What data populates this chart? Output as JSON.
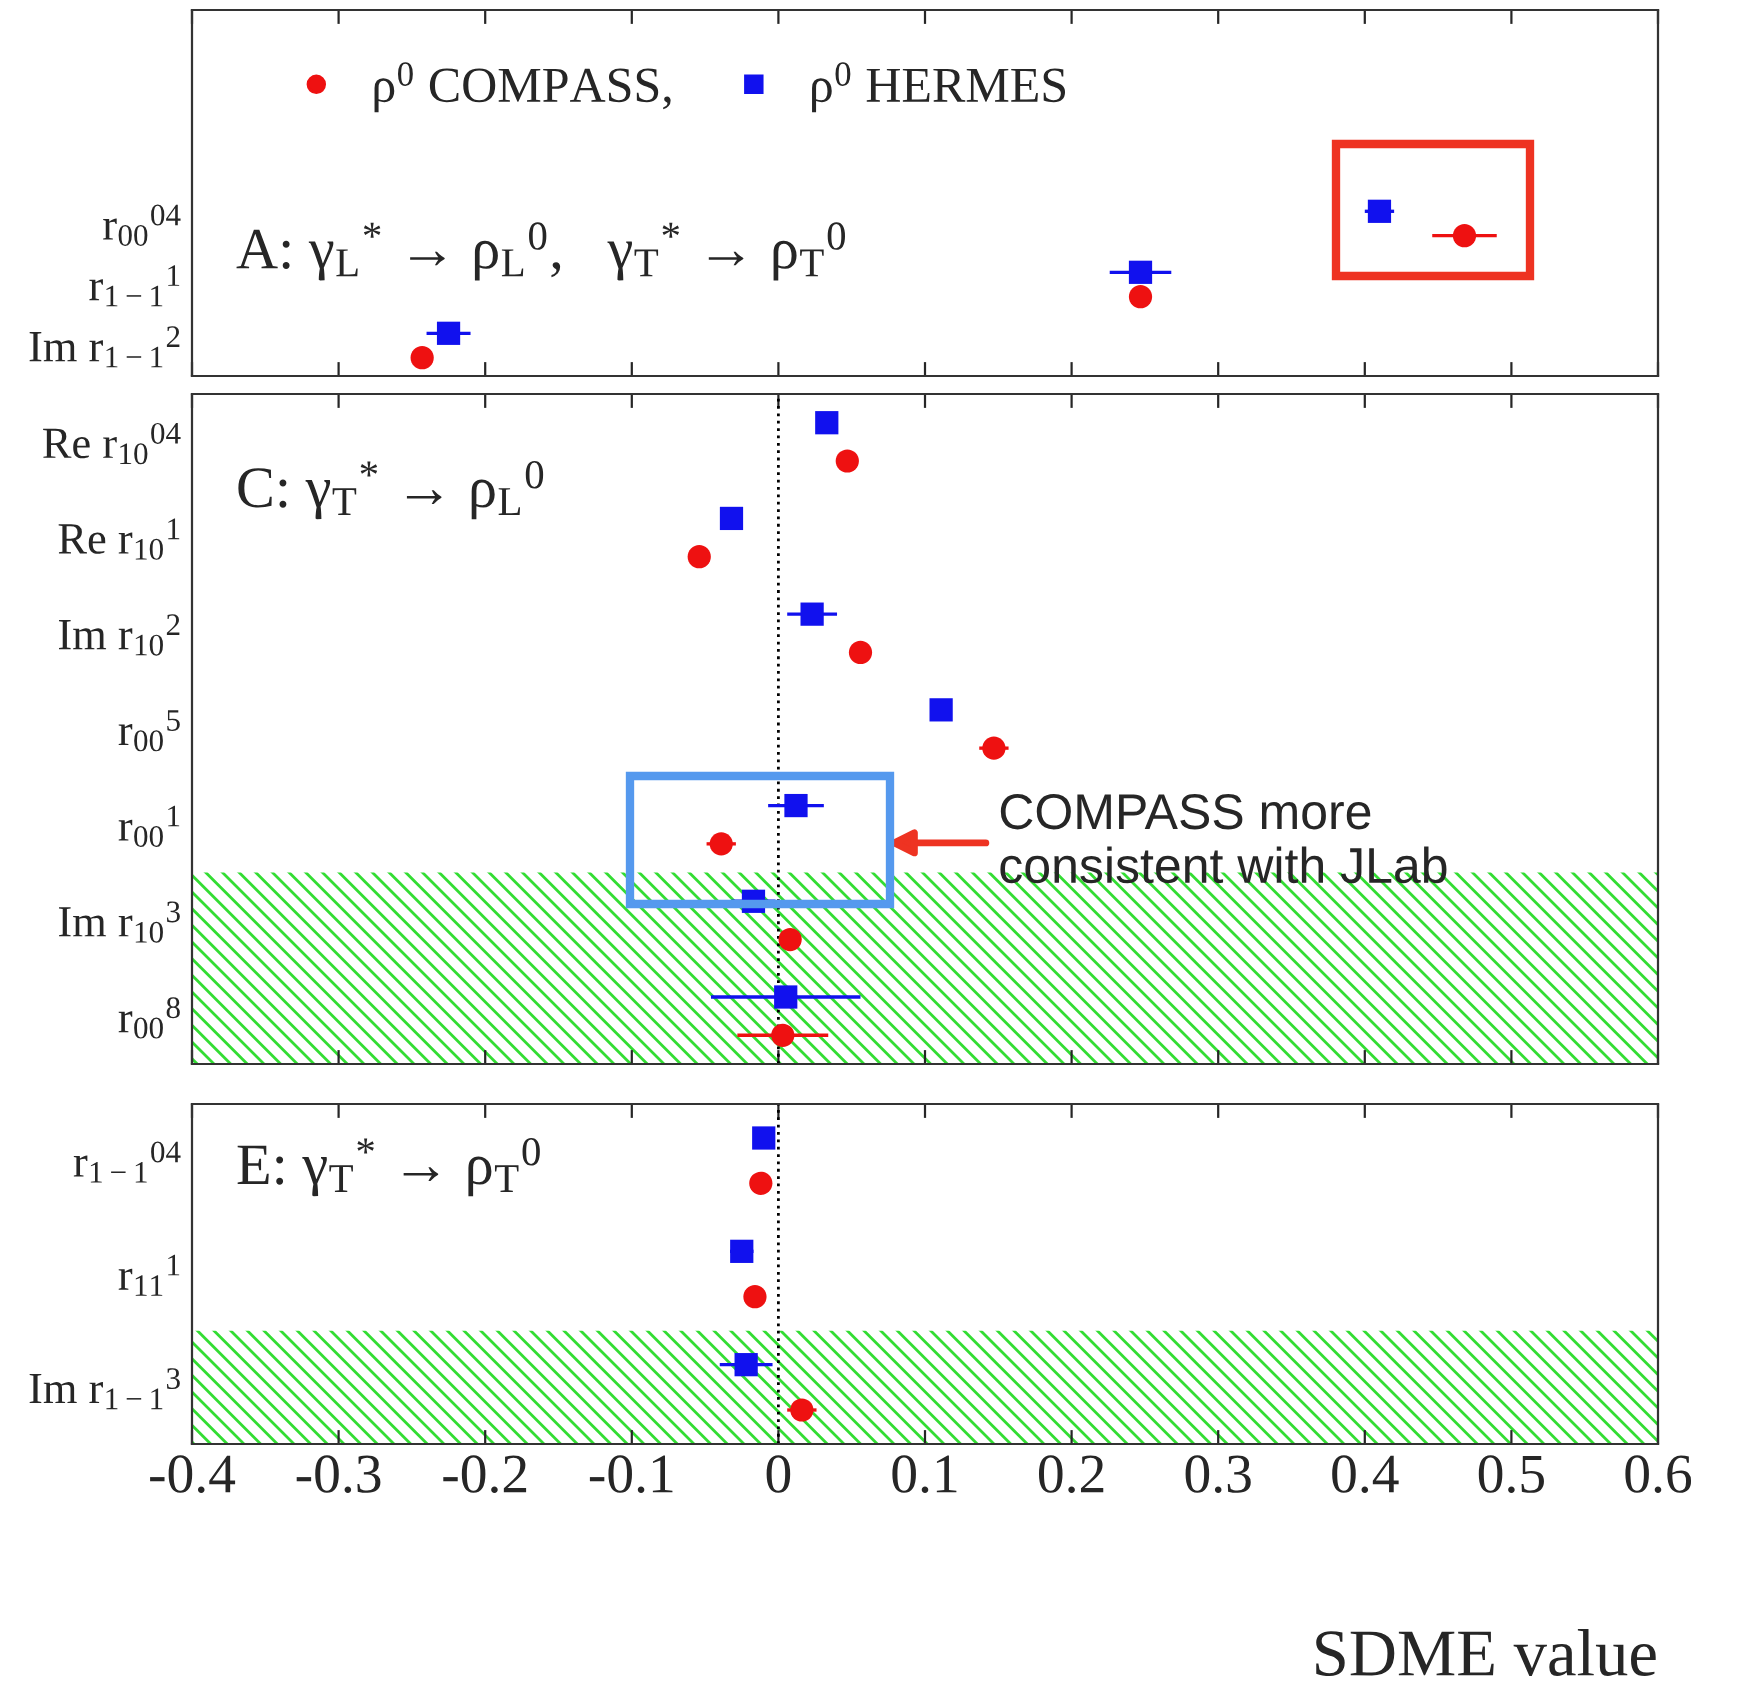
{
  "chart_data": [
    {
      "type": "scatter",
      "title": "A: γ$_{L}$$^{*}$ → ρ$_{L}$$^{0}$,   γ$_{T}$$^{*}$ → ρ$_{T}$$^{0}$",
      "categories": [
        null,
        null,
        null,
        "r$_{00}$$^{04}$",
        "r$_{1−1}$$^{1}$",
        "Im r$_{1−1}$$^{2}$"
      ],
      "series": [
        {
          "name": "ρ$^{0}$ COMPASS,",
          "color": "#ee1111",
          "marker": "circle",
          "values": [
            null,
            null,
            null,
            0.468,
            0.247,
            -0.243
          ],
          "errors": [
            null,
            null,
            null,
            0.022,
            null,
            null
          ]
        },
        {
          "name": "ρ$^{0}$ HERMES",
          "color": "#1111ee",
          "marker": "square",
          "values": [
            null,
            null,
            null,
            0.41,
            0.247,
            -0.225
          ],
          "errors": [
            null,
            null,
            null,
            0.01,
            0.021,
            0.015
          ]
        }
      ],
      "xlim": [
        -0.4,
        0.6
      ],
      "xticks": [
        -0.4,
        -0.3,
        -0.2,
        -0.1,
        0,
        0.1,
        0.2,
        0.3,
        0.4,
        0.5,
        0.6
      ],
      "tick_labels": "y",
      "legend": "top left",
      "orientation": "horizontal"
    },
    {
      "type": "scatter",
      "title": "C: γ$_{T}$$^{*}$ → ρ$_{L}$$^{0}$",
      "categories": [
        "Re r$_{10}$$^{04}$",
        "Re r$_{10}$$^{1}$",
        "Im r$_{10}$$^{2}$",
        "r$_{00}$$^{5}$",
        "r$_{00}$$^{1}$",
        "Im r$_{10}$$^{3}$",
        "r$_{00}$$^{8}$"
      ],
      "series": [
        {
          "color": "#ee1111",
          "marker": "circle",
          "values": [
            0.047,
            -0.054,
            0.056,
            0.147,
            -0.039,
            0.008,
            0.003
          ],
          "errors": [
            null,
            null,
            null,
            0.01,
            0.01,
            null,
            0.031
          ]
        },
        {
          "color": "#1111ee",
          "marker": "square",
          "values": [
            0.033,
            -0.032,
            0.023,
            0.111,
            0.012,
            -0.017,
            0.005
          ],
          "errors": [
            null,
            null,
            0.017,
            null,
            0.019,
            0.015,
            0.051
          ]
        }
      ],
      "xlim": [
        -0.4,
        0.6
      ],
      "xticks": [
        -0.4,
        -0.3,
        -0.2,
        -0.1,
        0,
        0.1,
        0.2,
        0.3,
        0.4,
        0.5,
        0.6
      ],
      "tick_labels": "y",
      "orientation": "horizontal",
      "ref_lines": [
        {
          "axis": "x",
          "value": 0,
          "line_style": "dotted",
          "color": "#000000"
        }
      ],
      "bands": [
        {
          "axis": "y",
          "from": "Im r$_{10}$$^{3}$",
          "to": "r$_{00}$$^{8}$",
          "color": "#33dd33"
        }
      ],
      "annotations": [
        "COMPASS more\nconsistent with JLab"
      ]
    },
    {
      "type": "scatter",
      "title": "E: γ$_{T}$$^{*}$ → ρ$_{T}$$^{0}$",
      "categories": [
        "r$_{1−1}$$^{04}$",
        "r$_{11}$$^{1}$",
        "Im r$_{1−1}$$^{3}$"
      ],
      "series": [
        {
          "color": "#ee1111",
          "marker": "circle",
          "values": [
            -0.012,
            -0.016,
            0.016
          ],
          "errors": [
            null,
            null,
            0.01
          ]
        },
        {
          "color": "#1111ee",
          "marker": "square",
          "values": [
            -0.01,
            -0.025,
            -0.022
          ],
          "errors": [
            null,
            0.008,
            0.018
          ]
        }
      ],
      "xlim": [
        -0.4,
        0.6
      ],
      "xticks": [
        -0.4,
        -0.3,
        -0.2,
        -0.1,
        0,
        0.1,
        0.2,
        0.3,
        0.4,
        0.5,
        0.6
      ],
      "xlabel": "SDME value",
      "orientation": "horizontal",
      "ref_lines": [
        {
          "axis": "x",
          "value": 0,
          "line_style": "dotted",
          "color": "#000000"
        }
      ],
      "bands": [
        {
          "axis": "y",
          "from": "Im r$_{1−1}$$^{3}$",
          "to": "Im r$_{1−1}$$^{3}$",
          "color": "#33dd33"
        }
      ]
    }
  ]
}
